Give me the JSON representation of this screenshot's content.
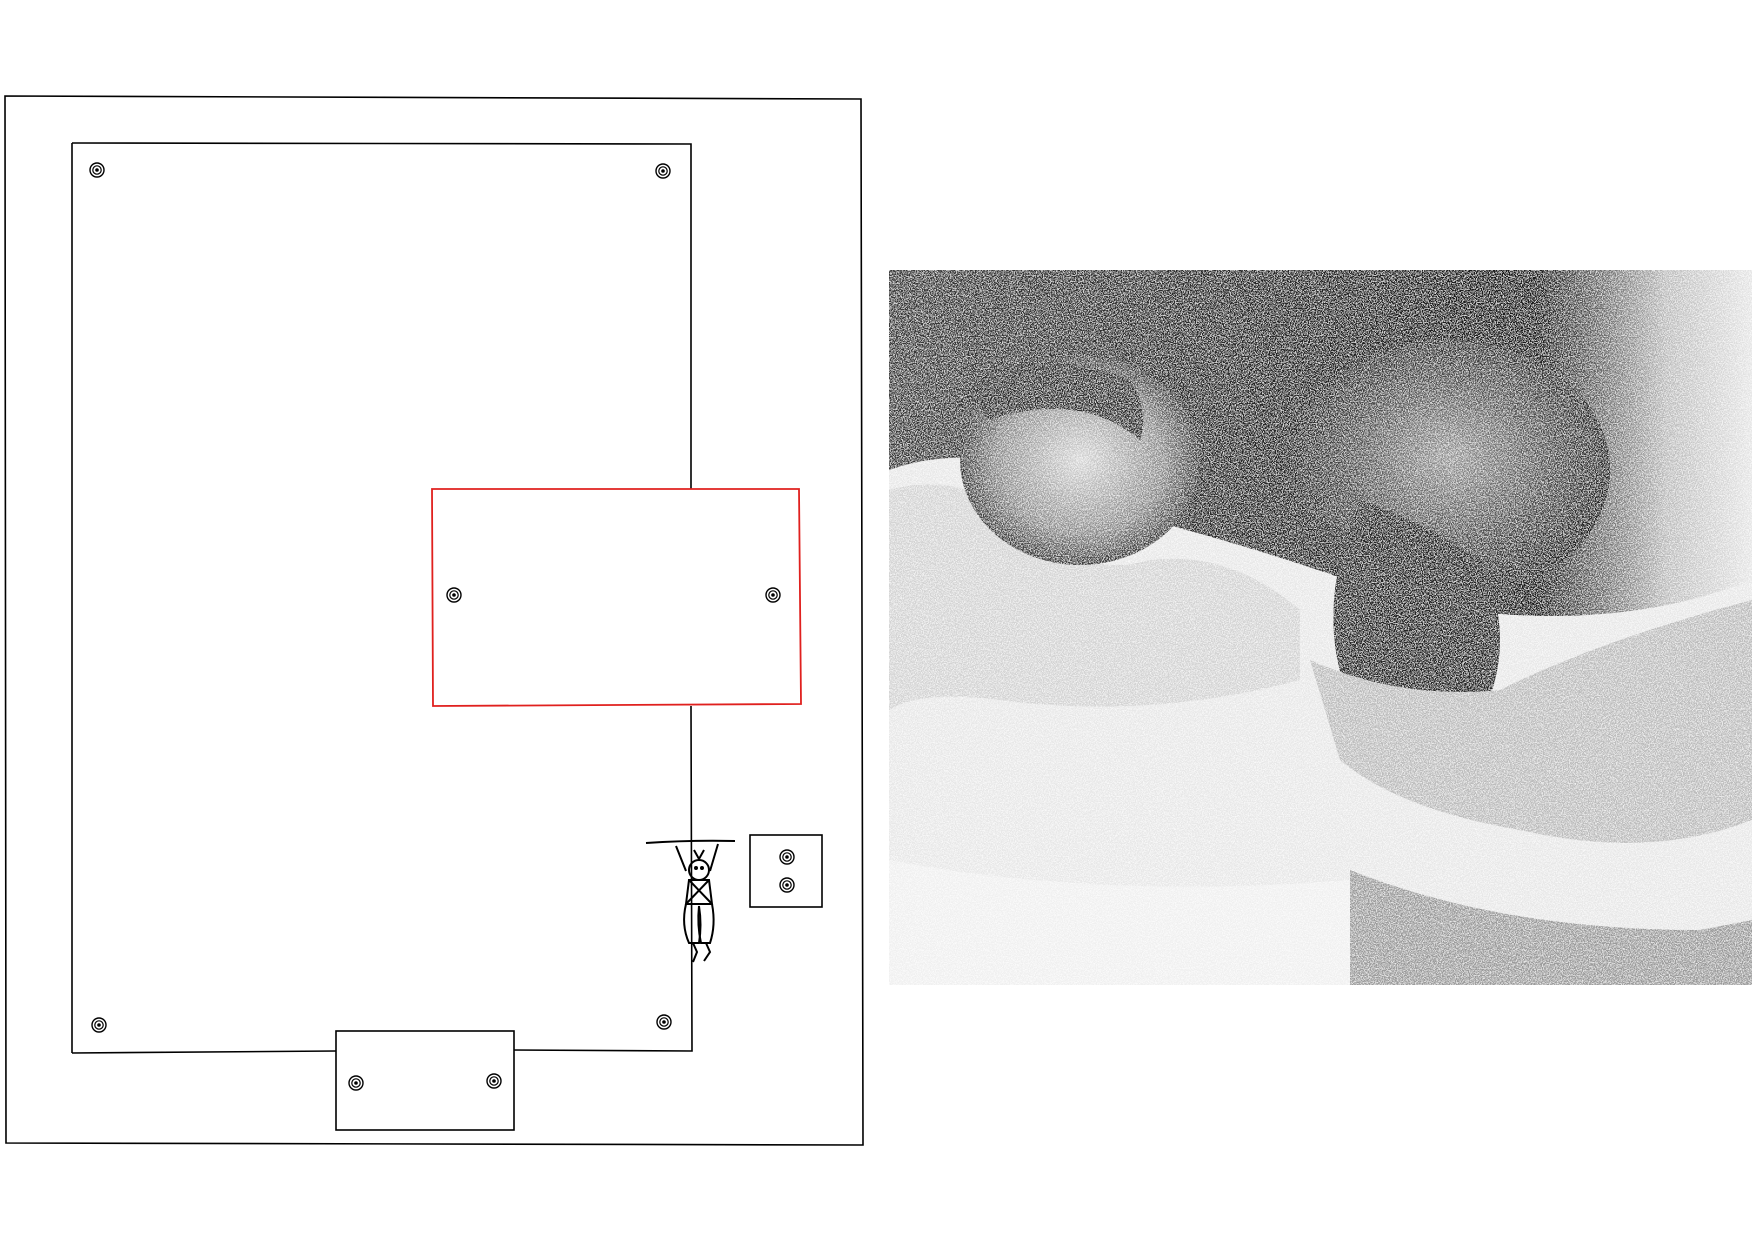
{
  "colors": {
    "background": "#ffffff",
    "line": "#000000",
    "highlight": "#e0201e",
    "photo_dark": "#1a1a1a",
    "photo_light": "#f4f4f4"
  },
  "drawing": {
    "screw_icon": "screw-icon",
    "figure_icon": "hanging-figure-icon"
  },
  "photo": {
    "style": "stippled-grayscale",
    "subject": "two-people-reclining"
  }
}
